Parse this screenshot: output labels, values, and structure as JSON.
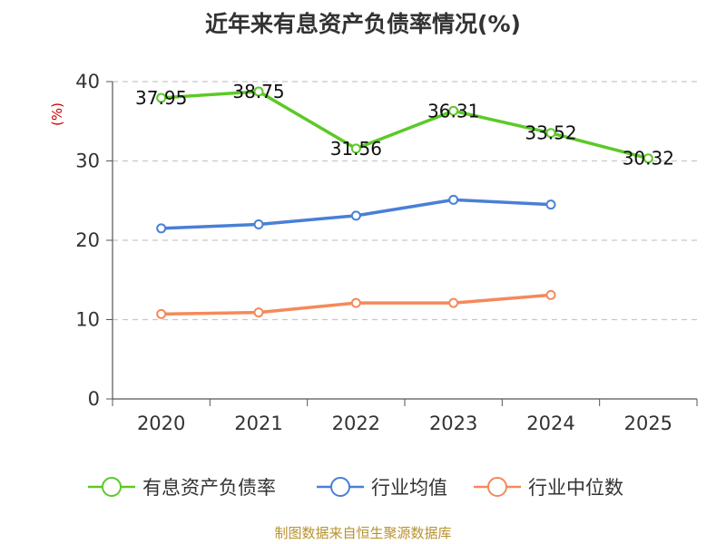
{
  "chart_data": {
    "type": "line",
    "title": "近年来有息资产负债率情况(%)",
    "ylabel": "(%)",
    "categories": [
      "2020",
      "2021",
      "2022",
      "2023",
      "2024",
      "2025"
    ],
    "ylim": [
      0,
      40
    ],
    "yticks": [
      "0",
      "10",
      "20",
      "30",
      "40"
    ],
    "grid": true,
    "legend_position": "bottom",
    "series": [
      {
        "name": "有息资产负债率",
        "color": "#5cc928",
        "values": [
          37.95,
          38.75,
          31.56,
          36.31,
          33.52,
          30.32
        ],
        "labels": [
          "37.95",
          "38.75",
          "31.56",
          "36.31",
          "33.52",
          "30.32"
        ]
      },
      {
        "name": "行业均值",
        "color": "#4a7fd6",
        "values": [
          21.5,
          22.0,
          23.1,
          25.1,
          24.5,
          null
        ]
      },
      {
        "name": "行业中位数",
        "color": "#f5895a",
        "values": [
          10.7,
          10.9,
          12.1,
          12.1,
          13.1,
          null
        ]
      }
    ]
  },
  "source_text": "制图数据来自恒生聚源数据库"
}
